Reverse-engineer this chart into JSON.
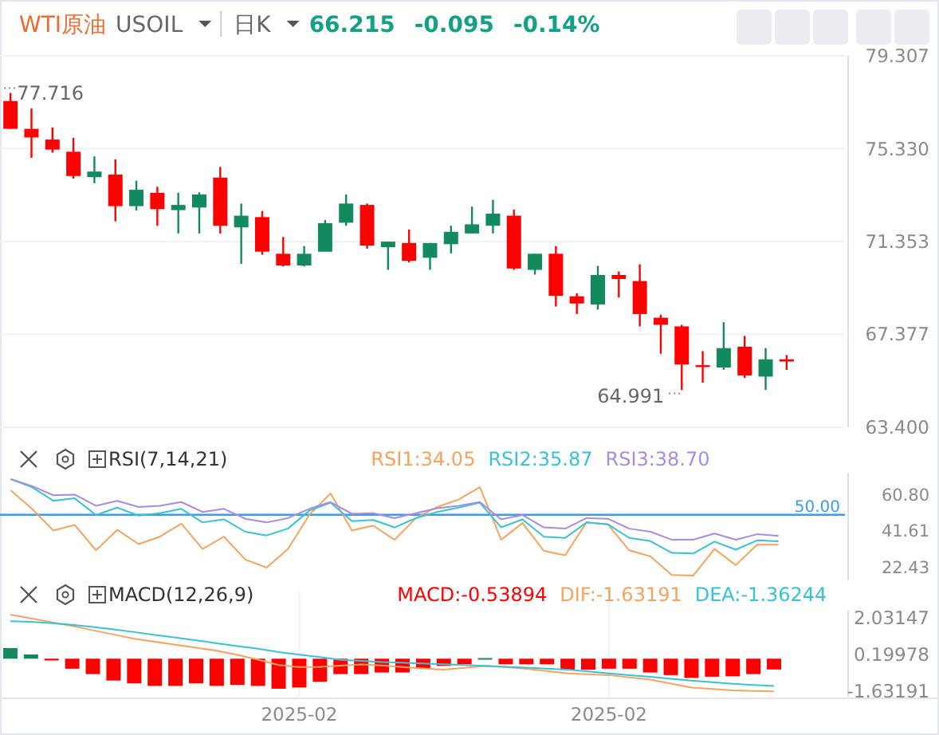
{
  "chart_data": [
    {
      "type": "candlestick",
      "title": "WTI原油",
      "categories": [
        null,
        null,
        null,
        null,
        null,
        null,
        null,
        null,
        null,
        null,
        null,
        null,
        null,
        null,
        null,
        null,
        null,
        null,
        null,
        null,
        null,
        null,
        null,
        null,
        null,
        null,
        null,
        null,
        null,
        null,
        null,
        null,
        null,
        null,
        null,
        null,
        null,
        null
      ],
      "ohlc": [
        [
          77.37,
          77.716,
          76.18,
          76.18
        ],
        [
          76.18,
          77.05,
          74.94,
          75.81
        ],
        [
          75.72,
          76.24,
          75.16,
          75.29
        ],
        [
          75.2,
          75.79,
          74.05,
          74.16
        ],
        [
          74.11,
          75.0,
          73.85,
          74.35
        ],
        [
          74.22,
          74.87,
          72.22,
          72.87
        ],
        [
          72.87,
          73.96,
          72.68,
          73.57
        ],
        [
          73.44,
          73.7,
          72.03,
          72.74
        ],
        [
          72.7,
          73.44,
          71.7,
          72.92
        ],
        [
          72.81,
          73.46,
          71.7,
          73.37
        ],
        [
          74.09,
          74.55,
          71.7,
          72.03
        ],
        [
          71.96,
          72.98,
          70.4,
          72.46
        ],
        [
          72.4,
          72.66,
          70.79,
          70.92
        ],
        [
          70.83,
          71.55,
          70.29,
          70.33
        ],
        [
          70.33,
          71.16,
          70.29,
          70.83
        ],
        [
          70.92,
          72.27,
          70.92,
          72.14
        ],
        [
          72.16,
          73.37,
          72.03,
          72.98
        ],
        [
          72.92,
          72.98,
          71.05,
          71.18
        ],
        [
          71.11,
          71.35,
          70.14,
          71.35
        ],
        [
          71.29,
          71.87,
          70.46,
          70.53
        ],
        [
          70.66,
          71.29,
          70.14,
          71.29
        ],
        [
          71.24,
          72.03,
          70.85,
          71.77
        ],
        [
          71.7,
          72.85,
          71.7,
          72.09
        ],
        [
          72.03,
          73.14,
          71.7,
          72.55
        ],
        [
          72.46,
          72.72,
          70.14,
          70.2
        ],
        [
          70.14,
          70.83,
          69.94,
          70.83
        ],
        [
          70.83,
          71.16,
          68.57,
          69.03
        ],
        [
          69.01,
          69.14,
          68.25,
          68.7
        ],
        [
          68.66,
          70.31,
          68.44,
          69.92
        ],
        [
          69.92,
          70.07,
          68.96,
          69.75
        ],
        [
          69.66,
          70.38,
          67.72,
          68.25
        ],
        [
          68.09,
          68.22,
          66.55,
          67.79
        ],
        [
          67.72,
          67.79,
          64.991,
          66.09
        ],
        [
          66.06,
          66.66,
          65.31,
          66.05
        ],
        [
          65.96,
          67.9,
          65.86,
          66.79
        ],
        [
          66.85,
          67.31,
          65.51,
          65.62
        ],
        [
          65.57,
          66.79,
          65.0,
          66.31
        ],
        [
          66.31,
          66.49,
          65.86,
          66.215
        ]
      ],
      "ylim": [
        63.4,
        79.307
      ],
      "yticks": [
        {
          "value": 63.4,
          "label": "63.400"
        },
        67.377,
        71.353,
        {
          "value": 75.33,
          "label": "75.330"
        },
        79.307
      ],
      "grid": "y",
      "annotations": [
        "USOIL",
        "日K",
        "66.215",
        "-0.095",
        "-0.14%",
        "77.716",
        "64.991"
      ]
    },
    {
      "type": "line",
      "title": "RSI(7,14,21)",
      "legend": "top",
      "categories": [
        null,
        null,
        null,
        null,
        null,
        null,
        null,
        null,
        null,
        null,
        null,
        null,
        null,
        null,
        null,
        null,
        null,
        null,
        null,
        null,
        null,
        null,
        null,
        null,
        null,
        null,
        null,
        null,
        null,
        null,
        null,
        null,
        null,
        null,
        null,
        null,
        null
      ],
      "series": [
        {
          "name": "RSI1:34.05",
          "color": "#f7a35c",
          "values": [
            63.06,
            53.16,
            41.61,
            44.58,
            31.05,
            41.94,
            34.35,
            38.31,
            45.24,
            31.71,
            38.31,
            26.1,
            21.81,
            31.71,
            49.86,
            61.41,
            41.61,
            44.25,
            36.66,
            48.21,
            54.15,
            58.11,
            64.71,
            36.66,
            45.57,
            30.72,
            28.41,
            45.9,
            44.91,
            31.05,
            27.75,
            17.85,
            17.52,
            31.71,
            23.13,
            34.02,
            34.05
          ]
        },
        {
          "name": "RSI2:35.87",
          "color": "#36c3d9",
          "values": [
            69.0,
            64.71,
            57.45,
            58.77,
            49.86,
            53.82,
            49.53,
            50.85,
            53.16,
            45.9,
            47.55,
            40.95,
            38.97,
            42.6,
            52.17,
            56.46,
            46.56,
            47.22,
            43.26,
            48.21,
            51.51,
            53.82,
            56.46,
            43.26,
            47.55,
            38.31,
            37.65,
            45.9,
            44.91,
            37.65,
            35.94,
            29.67,
            29.34,
            35.67,
            31.38,
            36.33,
            35.87
          ]
        },
        {
          "name": "RSI3:38.70",
          "color": "#a88be8",
          "values": [
            69.0,
            65.37,
            60.42,
            60.75,
            54.81,
            57.45,
            54.15,
            54.81,
            56.79,
            51.51,
            53.16,
            47.88,
            45.9,
            48.21,
            53.16,
            56.79,
            50.52,
            50.85,
            48.21,
            50.85,
            53.49,
            54.81,
            56.79,
            47.55,
            49.86,
            43.26,
            42.6,
            48.21,
            47.88,
            42.6,
            40.95,
            36.66,
            36.66,
            39.96,
            36.66,
            39.63,
            38.7
          ]
        }
      ],
      "ylim": [
        15,
        72
      ],
      "yticks": [
        {
          "value": 60.8,
          "label": "60.80"
        },
        41.61,
        22.43
      ],
      "ref_lines": [
        {
          "axis": "y",
          "value": 50,
          "label": "50.00",
          "color": "#3d9be9"
        }
      ]
    },
    {
      "type": "bar",
      "title": "MACD(12,26,9)",
      "legend": "top",
      "grid": "x",
      "categories": [
        null,
        null,
        null,
        null,
        null,
        null,
        null,
        null,
        null,
        null,
        null,
        null,
        null,
        null,
        "2025-02",
        null,
        null,
        null,
        null,
        null,
        null,
        null,
        null,
        null,
        null,
        null,
        null,
        null,
        null,
        "2025-02",
        null,
        null,
        null,
        null,
        null,
        null,
        null,
        null
      ],
      "series": [
        {
          "name": "MACD:-0.53894",
          "type": "bar",
          "colors": [
            "#138a5e",
            "#138a5e",
            "#ff0000",
            "#ff0000",
            "#ff0000",
            "#ff0000",
            "#ff0000",
            "#ff0000",
            "#ff0000",
            "#ff0000",
            "#ff0000",
            "#ff0000",
            "#ff0000",
            "#ff0000",
            "#ff0000",
            "#ff0000",
            "#ff0000",
            "#ff0000",
            "#ff0000",
            "#ff0000",
            "#ff0000",
            "#ff0000",
            "#ff0000",
            "#138a5e",
            "#ff0000",
            "#ff0000",
            "#ff0000",
            "#ff0000",
            "#ff0000",
            "#ff0000",
            "#ff0000",
            "#ff0000",
            "#ff0000",
            "#ff0000",
            "#ff0000",
            "#ff0000",
            "#ff0000",
            "#ff0000"
          ],
          "values": [
            0.53,
            0.21,
            -0.09,
            -0.5,
            -0.77,
            -1.09,
            -1.23,
            -1.36,
            -1.36,
            -1.23,
            -1.36,
            -1.31,
            -1.36,
            -1.5,
            -1.44,
            -1.15,
            -0.77,
            -0.77,
            -0.69,
            -0.69,
            -0.5,
            -0.36,
            -0.28,
            0.03,
            -0.28,
            -0.28,
            -0.28,
            -0.55,
            -0.55,
            -0.5,
            -0.5,
            -0.69,
            -0.82,
            -0.96,
            -0.9,
            -0.88,
            -0.77,
            -0.53894
          ]
        },
        {
          "name": "DIF:-1.63191",
          "type": "line",
          "color": "#f7a35c",
          "values": [
            2.2,
            2.01,
            1.82,
            1.63,
            1.42,
            1.21,
            1.0,
            0.85,
            0.7,
            0.55,
            0.4,
            0.19,
            -0.05,
            -0.32,
            -0.42,
            -0.41,
            -0.35,
            -0.29,
            -0.34,
            -0.42,
            -0.49,
            -0.55,
            -0.46,
            -0.37,
            -0.42,
            -0.51,
            -0.62,
            -0.74,
            -0.78,
            -0.82,
            -0.93,
            -1.04,
            -1.24,
            -1.44,
            -1.51,
            -1.58,
            -1.61,
            -1.63191
          ]
        },
        {
          "name": "DEA:-1.36244",
          "type": "line",
          "color": "#36c3d9",
          "values": [
            1.87,
            1.84,
            1.77,
            1.69,
            1.58,
            1.46,
            1.33,
            1.19,
            1.06,
            0.92,
            0.77,
            0.63,
            0.5,
            0.33,
            0.2,
            0.08,
            -0.06,
            -0.11,
            -0.17,
            -0.2,
            -0.24,
            -0.28,
            -0.32,
            -0.36,
            -0.41,
            -0.45,
            -0.5,
            -0.55,
            -0.64,
            -0.74,
            -0.82,
            -0.9,
            -1.0,
            -1.09,
            -1.17,
            -1.25,
            -1.31,
            -1.36244
          ]
        }
      ],
      "ylim": [
        -1.9,
        2.4
      ],
      "yticks": [
        2.03147,
        0.19978,
        -1.63191
      ]
    }
  ]
}
